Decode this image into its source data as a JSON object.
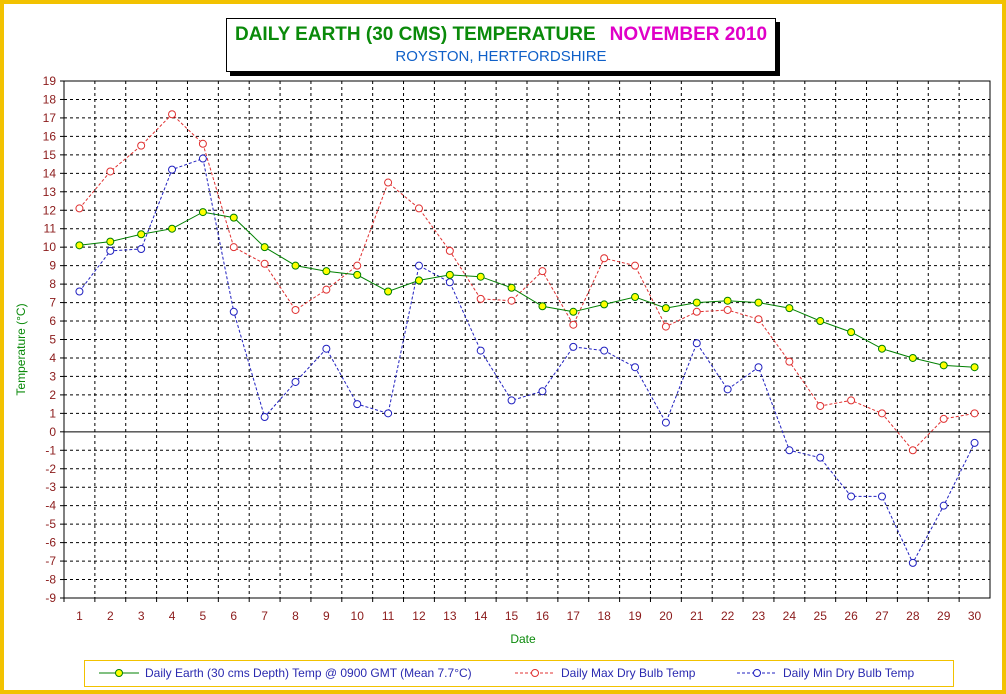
{
  "header": {
    "title": "DAILY EARTH (30 CMS) TEMPERATURE",
    "month": "NOVEMBER 2010",
    "location": "ROYSTON, HERTFORDSHIRE"
  },
  "chart_data": {
    "type": "line",
    "xlabel": "Date",
    "ylabel": "Temperature (°C)",
    "ylim": [
      -9,
      19
    ],
    "grid": true,
    "legend_position": "bottom",
    "x": [
      1,
      2,
      3,
      4,
      5,
      6,
      7,
      8,
      9,
      10,
      11,
      12,
      13,
      14,
      15,
      16,
      17,
      18,
      19,
      20,
      21,
      22,
      23,
      24,
      25,
      26,
      27,
      28,
      29,
      30
    ],
    "series": [
      {
        "name": "Daily Earth (30 cms Depth) Temp @ 0900 GMT (Mean 7.7°C)",
        "color": "#008000",
        "marker_fill": "#ffff00",
        "values": [
          10.1,
          10.3,
          10.7,
          11.0,
          11.9,
          11.6,
          10.0,
          9.0,
          8.7,
          8.5,
          7.6,
          8.2,
          8.5,
          8.4,
          7.8,
          6.8,
          6.5,
          6.9,
          7.3,
          6.7,
          7.0,
          7.1,
          7.0,
          6.7,
          6.0,
          5.4,
          4.5,
          4.0,
          3.6,
          3.5
        ]
      },
      {
        "name": "Daily Max Dry Bulb Temp",
        "color": "#e03030",
        "values": [
          12.1,
          14.1,
          15.5,
          17.2,
          15.6,
          10.0,
          9.1,
          6.6,
          7.7,
          9.0,
          13.5,
          12.1,
          9.8,
          7.2,
          7.1,
          8.7,
          5.8,
          9.4,
          9.0,
          5.7,
          6.5,
          6.6,
          6.1,
          3.8,
          1.4,
          1.7,
          1.0,
          -1.0,
          0.7,
          1.0
        ]
      },
      {
        "name": "Daily Min Dry Bulb Temp",
        "color": "#2020c0",
        "values": [
          7.6,
          9.8,
          9.9,
          14.2,
          14.8,
          6.5,
          0.8,
          2.7,
          4.5,
          1.5,
          1.0,
          9.0,
          8.1,
          4.4,
          1.7,
          2.2,
          4.6,
          4.4,
          3.5,
          0.5,
          4.8,
          2.3,
          3.5,
          -1.0,
          -1.4,
          -3.5,
          -3.5,
          -7.1,
          -4.0,
          -0.6
        ]
      }
    ]
  }
}
